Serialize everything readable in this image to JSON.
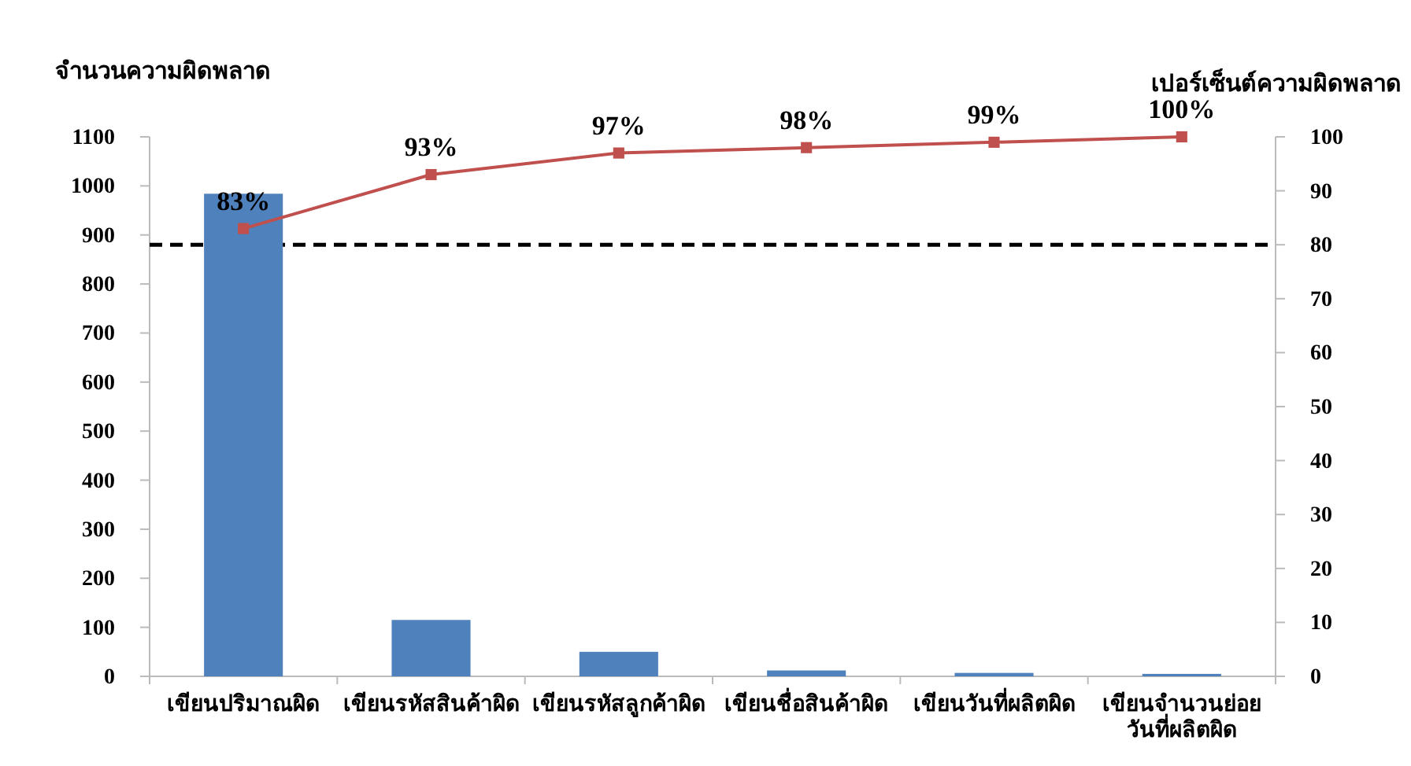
{
  "chart_data": {
    "type": "bar",
    "ylabel": "จำนวนความผิดพลาด",
    "y2label": "เปอร์เซ็นต์ความผิดพลาด",
    "categories": [
      "เขียนปริมาณผิด",
      "เขียนรหัสสินค้าผิด",
      "เขียนรหัสลูกค้าผิด",
      "เขียนชื่อสินค้าผิด",
      "เขียนวันที่ผลิตผิด",
      "เขียนจำนวนย่อย วันที่ผลิตผิด"
    ],
    "series": [
      {
        "color": "#4f81bd",
        "values": [
          984,
          115,
          50,
          12,
          7,
          5
        ]
      },
      {
        "type": "line",
        "axis": "y2",
        "color": "#c0504d",
        "values": [
          83,
          93,
          97,
          98,
          99,
          100
        ],
        "value_labels": [
          "83%",
          "93%",
          "97%",
          "98%",
          "99%",
          "100%"
        ],
        "marker": "square"
      }
    ],
    "ylim": [
      0,
      1100
    ],
    "yticks": [
      0,
      100,
      200,
      300,
      400,
      500,
      600,
      700,
      800,
      900,
      1000,
      1100
    ],
    "y2lim": [
      0,
      100
    ],
    "y2ticks": [
      0,
      10,
      20,
      30,
      40,
      50,
      60,
      70,
      80,
      90,
      100
    ],
    "ref_lines": [
      {
        "axis": "y2",
        "value": 80,
        "color": "#000000",
        "line_style": "dashed"
      }
    ],
    "grid": false
  }
}
